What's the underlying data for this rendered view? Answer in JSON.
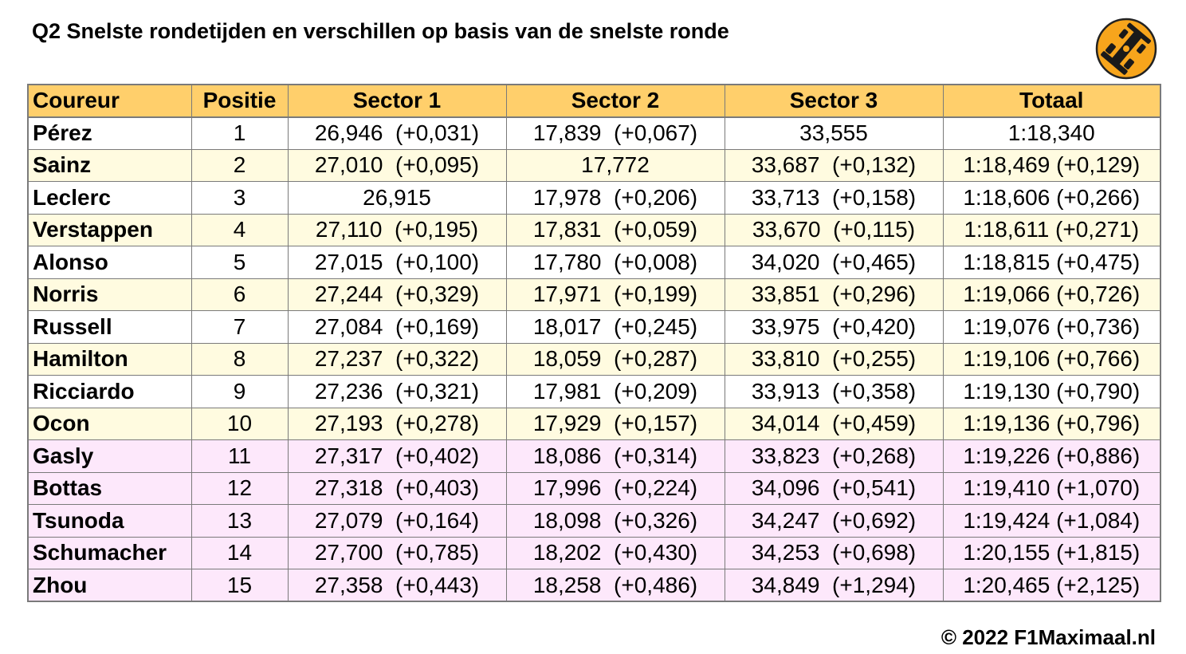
{
  "title": "Q2 Snelste rondetijden en verschillen op basis van de snelste ronde",
  "logo": {
    "icon": "race-car-icon",
    "color": "#f7a51c"
  },
  "colors": {
    "header": "#ffcf6b",
    "row_white": "#ffffff",
    "row_yellow": "#fffbe0",
    "row_pink": "#fde8fb",
    "border": "#7a7a7a"
  },
  "copyright": "© 2022 F1Maximaal.nl",
  "chart_data": {
    "type": "table",
    "title": "Q2 Snelste rondetijden en verschillen op basis van de snelste ronde",
    "columns": [
      "Coureur",
      "Positie",
      "Sector 1",
      "Sector 2",
      "Sector 3",
      "Totaal"
    ],
    "rows": [
      {
        "group": "white",
        "cells": [
          "Pérez",
          "1",
          "26,946  (+0,031)",
          "17,839  (+0,067)",
          "33,555",
          "1:18,340"
        ]
      },
      {
        "group": "yellow",
        "cells": [
          "Sainz",
          "2",
          "27,010  (+0,095)",
          "17,772",
          "33,687  (+0,132)",
          "1:18,469 (+0,129)"
        ]
      },
      {
        "group": "white",
        "cells": [
          "Leclerc",
          "3",
          "26,915",
          "17,978  (+0,206)",
          "33,713  (+0,158)",
          "1:18,606 (+0,266)"
        ]
      },
      {
        "group": "yellow",
        "cells": [
          "Verstappen",
          "4",
          "27,110  (+0,195)",
          "17,831  (+0,059)",
          "33,670  (+0,115)",
          "1:18,611 (+0,271)"
        ]
      },
      {
        "group": "white",
        "cells": [
          "Alonso",
          "5",
          "27,015  (+0,100)",
          "17,780  (+0,008)",
          "34,020  (+0,465)",
          "1:18,815 (+0,475)"
        ]
      },
      {
        "group": "yellow",
        "cells": [
          "Norris",
          "6",
          "27,244  (+0,329)",
          "17,971  (+0,199)",
          "33,851  (+0,296)",
          "1:19,066 (+0,726)"
        ]
      },
      {
        "group": "white",
        "cells": [
          "Russell",
          "7",
          "27,084  (+0,169)",
          "18,017  (+0,245)",
          "33,975  (+0,420)",
          "1:19,076 (+0,736)"
        ]
      },
      {
        "group": "yellow",
        "cells": [
          "Hamilton",
          "8",
          "27,237  (+0,322)",
          "18,059  (+0,287)",
          "33,810  (+0,255)",
          "1:19,106 (+0,766)"
        ]
      },
      {
        "group": "white",
        "cells": [
          "Ricciardo",
          "9",
          "27,236  (+0,321)",
          "17,981  (+0,209)",
          "33,913  (+0,358)",
          "1:19,130 (+0,790)"
        ]
      },
      {
        "group": "yellow",
        "cells": [
          "Ocon",
          "10",
          "27,193  (+0,278)",
          "17,929  (+0,157)",
          "34,014  (+0,459)",
          "1:19,136 (+0,796)"
        ]
      },
      {
        "group": "pink",
        "cells": [
          "Gasly",
          "11",
          "27,317  (+0,402)",
          "18,086  (+0,314)",
          "33,823  (+0,268)",
          "1:19,226 (+0,886)"
        ]
      },
      {
        "group": "pink",
        "cells": [
          "Bottas",
          "12",
          "27,318  (+0,403)",
          "17,996  (+0,224)",
          "34,096  (+0,541)",
          "1:19,410 (+1,070)"
        ]
      },
      {
        "group": "pink",
        "cells": [
          "Tsunoda",
          "13",
          "27,079  (+0,164)",
          "18,098  (+0,326)",
          "34,247  (+0,692)",
          "1:19,424 (+1,084)"
        ]
      },
      {
        "group": "pink",
        "cells": [
          "Schumacher",
          "14",
          "27,700  (+0,785)",
          "18,202  (+0,430)",
          "34,253  (+0,698)",
          "1:20,155 (+1,815)"
        ]
      },
      {
        "group": "pink",
        "cells": [
          "Zhou",
          "15",
          "27,358  (+0,443)",
          "18,258  (+0,486)",
          "34,849  (+1,294)",
          "1:20,465 (+2,125)"
        ]
      }
    ]
  }
}
